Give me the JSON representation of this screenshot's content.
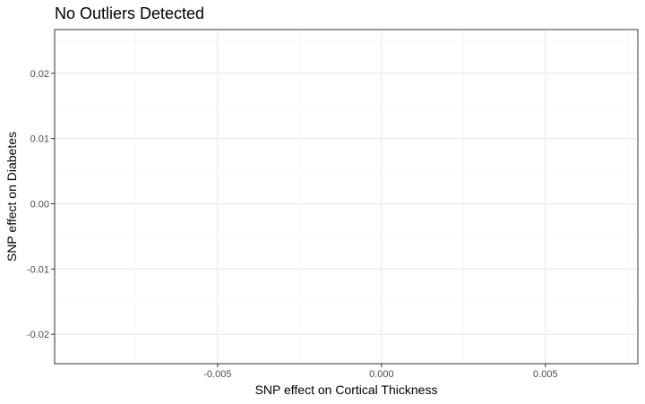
{
  "chart_data": {
    "type": "scatter",
    "title": "No Outliers Detected",
    "xlabel": "SNP effect on Cortical Thickness",
    "ylabel": "SNP effect on Diabetes",
    "xlim": [
      -0.00997,
      0.00782
    ],
    "ylim": [
      -0.0245,
      0.0267
    ],
    "x_ticks": [
      -0.005,
      0.0,
      0.005
    ],
    "x_tick_labels": [
      "-0.005",
      "0.000",
      "0.005"
    ],
    "y_ticks": [
      -0.02,
      -0.01,
      0.0,
      0.01,
      0.02
    ],
    "y_tick_labels": [
      "-0.02",
      "-0.01",
      "0.00",
      "0.01",
      "0.02"
    ],
    "x_minor_ticks": [
      -0.0075,
      -0.0025,
      0.0025,
      0.0075
    ],
    "y_minor_ticks": [
      -0.015,
      -0.005,
      0.005,
      0.015,
      0.025
    ],
    "grid": true,
    "points": [],
    "colors": {
      "panel_border": "#333333",
      "grid_major": "#ebebeb",
      "grid_minor": "#f5f5f5",
      "tick_mark": "#333333",
      "tick_text": "#4d4d4d"
    }
  }
}
